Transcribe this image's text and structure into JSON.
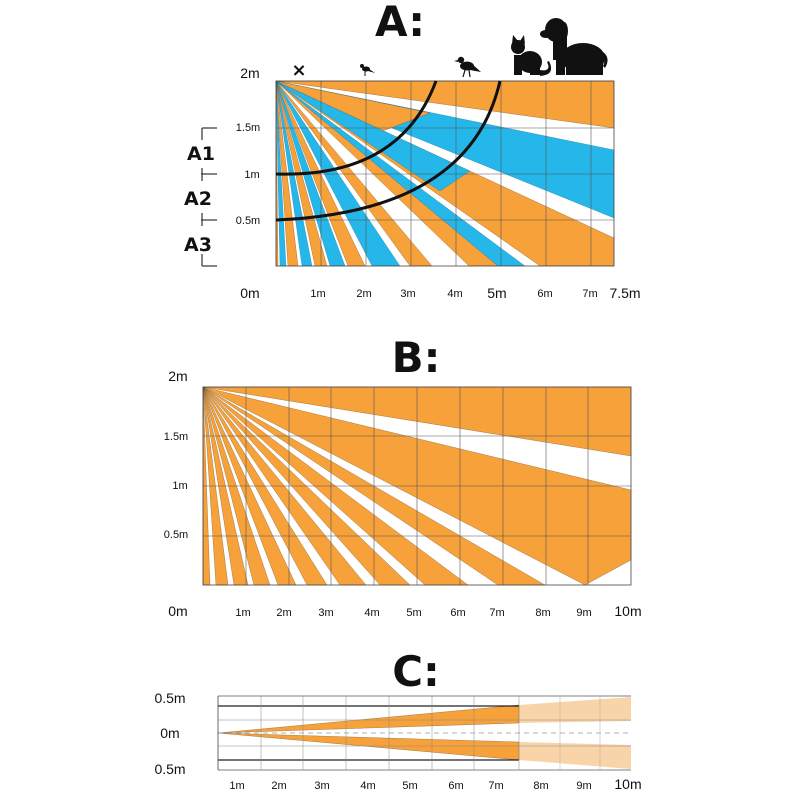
{
  "panels": {
    "a": {
      "title": "A:",
      "y_labels": [
        "2m",
        "1.5m",
        "1m",
        "0.5m",
        "0m"
      ],
      "x_labels": [
        "1m",
        "2m",
        "3m",
        "4m",
        "5m",
        "6m",
        "7m",
        "7.5m"
      ],
      "zones": [
        "A1",
        "A2",
        "A3"
      ],
      "marker": "×",
      "animals": [
        "small-bird-icon",
        "large-bird-icon",
        "cat-icon",
        "dog-icon"
      ],
      "colors": {
        "detection": "#f7a13a",
        "pet_zone": "#25b7ea",
        "arc": "#111111"
      }
    },
    "b": {
      "title": "B:",
      "y_labels": [
        "2m",
        "1.5m",
        "1m",
        "0.5m",
        "0m"
      ],
      "x_labels": [
        "1m",
        "2m",
        "3m",
        "4m",
        "5m",
        "6m",
        "7m",
        "8m",
        "9m",
        "10m"
      ],
      "colors": {
        "detection": "#f7a13a"
      }
    },
    "c": {
      "title": "C:",
      "y_labels": [
        "0.5m",
        "0m",
        "0.5m"
      ],
      "x_labels": [
        "1m",
        "2m",
        "3m",
        "4m",
        "5m",
        "6m",
        "7m",
        "8m",
        "9m",
        "10m"
      ],
      "colors": {
        "detection": "#f7a13a",
        "faded": "#f9d4a8"
      }
    }
  }
}
